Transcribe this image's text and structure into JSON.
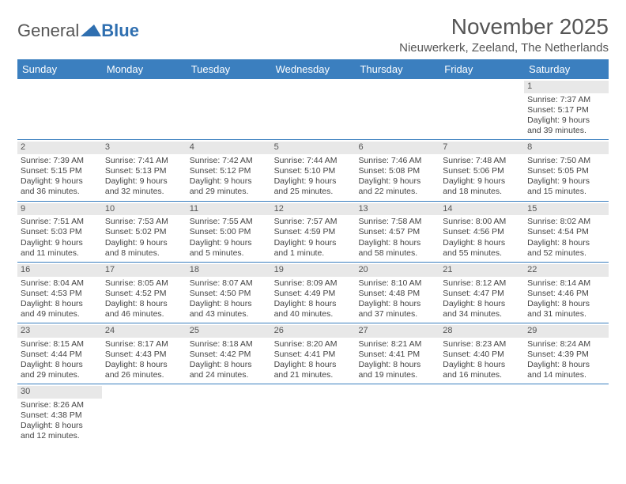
{
  "logo": {
    "text1": "General",
    "text2": "Blue"
  },
  "title": "November 2025",
  "location": "Nieuwerkerk, Zeeland, The Netherlands",
  "colors": {
    "header_bg": "#3b7fbf",
    "header_text": "#ffffff",
    "daynum_bg": "#e8e8e8",
    "text": "#444444",
    "rule": "#3b7fbf"
  },
  "dayNames": [
    "Sunday",
    "Monday",
    "Tuesday",
    "Wednesday",
    "Thursday",
    "Friday",
    "Saturday"
  ],
  "weeks": [
    [
      {
        "blank": true
      },
      {
        "blank": true
      },
      {
        "blank": true
      },
      {
        "blank": true
      },
      {
        "blank": true
      },
      {
        "blank": true
      },
      {
        "n": "1",
        "sunrise": "7:37 AM",
        "sunset": "5:17 PM",
        "dl1": "Daylight: 9 hours",
        "dl2": "and 39 minutes."
      }
    ],
    [
      {
        "n": "2",
        "sunrise": "7:39 AM",
        "sunset": "5:15 PM",
        "dl1": "Daylight: 9 hours",
        "dl2": "and 36 minutes."
      },
      {
        "n": "3",
        "sunrise": "7:41 AM",
        "sunset": "5:13 PM",
        "dl1": "Daylight: 9 hours",
        "dl2": "and 32 minutes."
      },
      {
        "n": "4",
        "sunrise": "7:42 AM",
        "sunset": "5:12 PM",
        "dl1": "Daylight: 9 hours",
        "dl2": "and 29 minutes."
      },
      {
        "n": "5",
        "sunrise": "7:44 AM",
        "sunset": "5:10 PM",
        "dl1": "Daylight: 9 hours",
        "dl2": "and 25 minutes."
      },
      {
        "n": "6",
        "sunrise": "7:46 AM",
        "sunset": "5:08 PM",
        "dl1": "Daylight: 9 hours",
        "dl2": "and 22 minutes."
      },
      {
        "n": "7",
        "sunrise": "7:48 AM",
        "sunset": "5:06 PM",
        "dl1": "Daylight: 9 hours",
        "dl2": "and 18 minutes."
      },
      {
        "n": "8",
        "sunrise": "7:50 AM",
        "sunset": "5:05 PM",
        "dl1": "Daylight: 9 hours",
        "dl2": "and 15 minutes."
      }
    ],
    [
      {
        "n": "9",
        "sunrise": "7:51 AM",
        "sunset": "5:03 PM",
        "dl1": "Daylight: 9 hours",
        "dl2": "and 11 minutes."
      },
      {
        "n": "10",
        "sunrise": "7:53 AM",
        "sunset": "5:02 PM",
        "dl1": "Daylight: 9 hours",
        "dl2": "and 8 minutes."
      },
      {
        "n": "11",
        "sunrise": "7:55 AM",
        "sunset": "5:00 PM",
        "dl1": "Daylight: 9 hours",
        "dl2": "and 5 minutes."
      },
      {
        "n": "12",
        "sunrise": "7:57 AM",
        "sunset": "4:59 PM",
        "dl1": "Daylight: 9 hours",
        "dl2": "and 1 minute."
      },
      {
        "n": "13",
        "sunrise": "7:58 AM",
        "sunset": "4:57 PM",
        "dl1": "Daylight: 8 hours",
        "dl2": "and 58 minutes."
      },
      {
        "n": "14",
        "sunrise": "8:00 AM",
        "sunset": "4:56 PM",
        "dl1": "Daylight: 8 hours",
        "dl2": "and 55 minutes."
      },
      {
        "n": "15",
        "sunrise": "8:02 AM",
        "sunset": "4:54 PM",
        "dl1": "Daylight: 8 hours",
        "dl2": "and 52 minutes."
      }
    ],
    [
      {
        "n": "16",
        "sunrise": "8:04 AM",
        "sunset": "4:53 PM",
        "dl1": "Daylight: 8 hours",
        "dl2": "and 49 minutes."
      },
      {
        "n": "17",
        "sunrise": "8:05 AM",
        "sunset": "4:52 PM",
        "dl1": "Daylight: 8 hours",
        "dl2": "and 46 minutes."
      },
      {
        "n": "18",
        "sunrise": "8:07 AM",
        "sunset": "4:50 PM",
        "dl1": "Daylight: 8 hours",
        "dl2": "and 43 minutes."
      },
      {
        "n": "19",
        "sunrise": "8:09 AM",
        "sunset": "4:49 PM",
        "dl1": "Daylight: 8 hours",
        "dl2": "and 40 minutes."
      },
      {
        "n": "20",
        "sunrise": "8:10 AM",
        "sunset": "4:48 PM",
        "dl1": "Daylight: 8 hours",
        "dl2": "and 37 minutes."
      },
      {
        "n": "21",
        "sunrise": "8:12 AM",
        "sunset": "4:47 PM",
        "dl1": "Daylight: 8 hours",
        "dl2": "and 34 minutes."
      },
      {
        "n": "22",
        "sunrise": "8:14 AM",
        "sunset": "4:46 PM",
        "dl1": "Daylight: 8 hours",
        "dl2": "and 31 minutes."
      }
    ],
    [
      {
        "n": "23",
        "sunrise": "8:15 AM",
        "sunset": "4:44 PM",
        "dl1": "Daylight: 8 hours",
        "dl2": "and 29 minutes."
      },
      {
        "n": "24",
        "sunrise": "8:17 AM",
        "sunset": "4:43 PM",
        "dl1": "Daylight: 8 hours",
        "dl2": "and 26 minutes."
      },
      {
        "n": "25",
        "sunrise": "8:18 AM",
        "sunset": "4:42 PM",
        "dl1": "Daylight: 8 hours",
        "dl2": "and 24 minutes."
      },
      {
        "n": "26",
        "sunrise": "8:20 AM",
        "sunset": "4:41 PM",
        "dl1": "Daylight: 8 hours",
        "dl2": "and 21 minutes."
      },
      {
        "n": "27",
        "sunrise": "8:21 AM",
        "sunset": "4:41 PM",
        "dl1": "Daylight: 8 hours",
        "dl2": "and 19 minutes."
      },
      {
        "n": "28",
        "sunrise": "8:23 AM",
        "sunset": "4:40 PM",
        "dl1": "Daylight: 8 hours",
        "dl2": "and 16 minutes."
      },
      {
        "n": "29",
        "sunrise": "8:24 AM",
        "sunset": "4:39 PM",
        "dl1": "Daylight: 8 hours",
        "dl2": "and 14 minutes."
      }
    ],
    [
      {
        "n": "30",
        "sunrise": "8:26 AM",
        "sunset": "4:38 PM",
        "dl1": "Daylight: 8 hours",
        "dl2": "and 12 minutes."
      },
      {
        "blank": true
      },
      {
        "blank": true
      },
      {
        "blank": true
      },
      {
        "blank": true
      },
      {
        "blank": true
      },
      {
        "blank": true
      }
    ]
  ],
  "labels": {
    "sunrise": "Sunrise: ",
    "sunset": "Sunset: "
  }
}
